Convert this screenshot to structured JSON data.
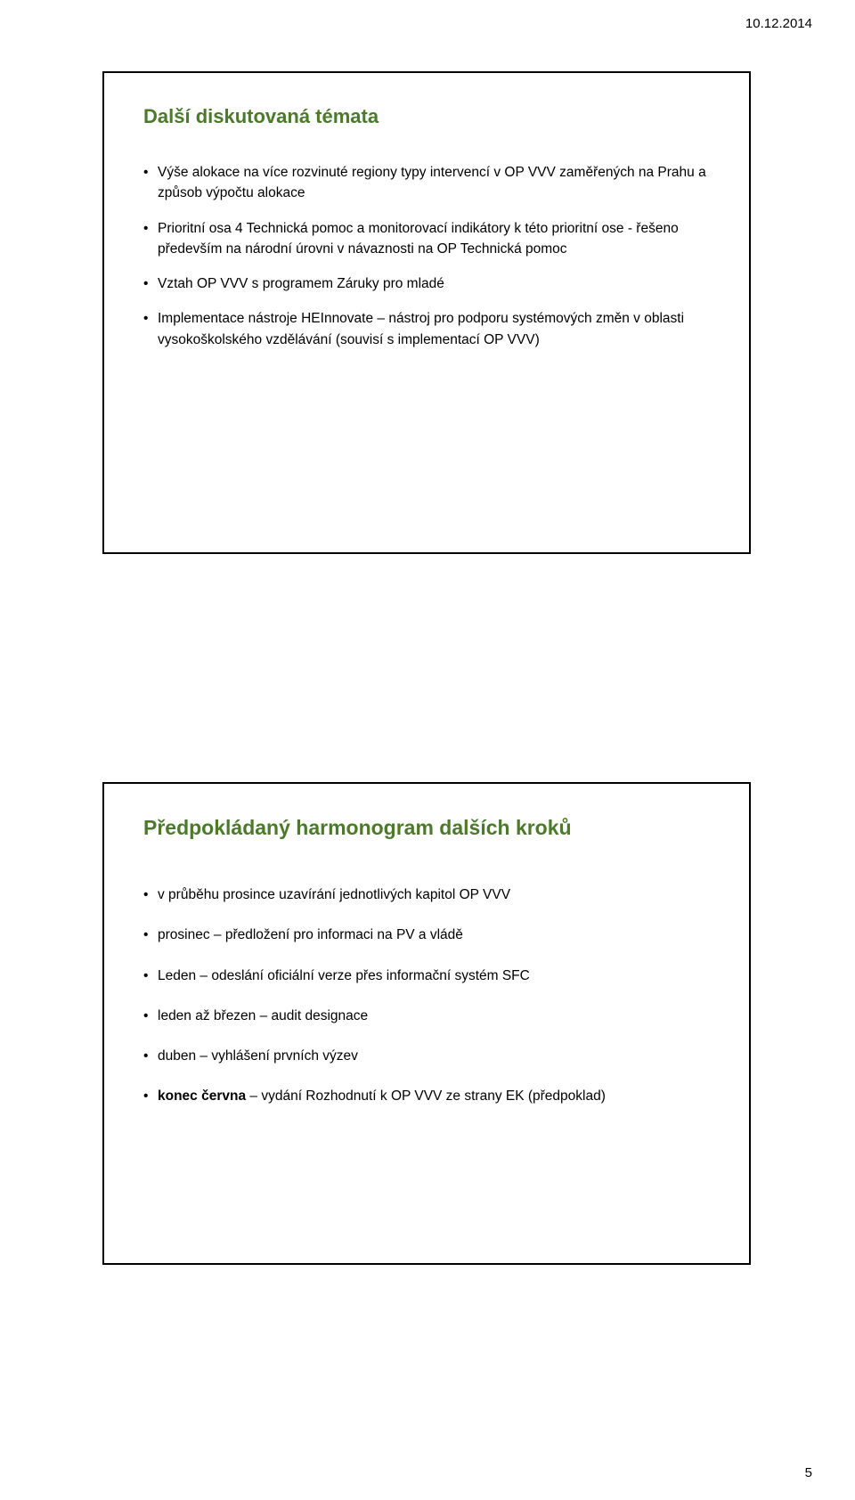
{
  "header": {
    "date": "10.12.2014"
  },
  "footer": {
    "page_number": "5"
  },
  "slides": [
    {
      "title": "Další diskutovaná témata",
      "title_color": "#4a7a2a",
      "bullets": [
        {
          "text": "Výše alokace na více rozvinuté regiony typy intervencí v OP VVV zaměřených na Prahu a způsob výpočtu alokace"
        },
        {
          "text": "Prioritní osa 4 Technická pomoc a monitorovací indikátory k této prioritní ose - řešeno především na národní úrovni v návaznosti na OP Technická pomoc"
        },
        {
          "text": "Vztah OP VVV s programem Záruky pro mladé"
        },
        {
          "text": "Implementace nástroje HEInnovate – nástroj pro podporu systémových změn v oblasti vysokoškolského vzdělávání (souvisí s implementací OP VVV)"
        }
      ]
    },
    {
      "title": "Předpokládaný harmonogram dalších kroků",
      "title_color": "#4a7a2a",
      "bullets": [
        {
          "text": "v průběhu prosince uzavírání jednotlivých kapitol OP VVV"
        },
        {
          "text": "prosinec – předložení pro informaci na PV a vládě"
        },
        {
          "text": "Leden   – odeslání oficiální verze přes informační systém SFC"
        },
        {
          "text": "leden až březen – audit designace"
        },
        {
          "text": "duben – vyhlášení prvních výzev"
        },
        {
          "prefix_bold": "konec června",
          "text": " – vydání Rozhodnutí k OP VVV ze strany EK (předpoklad)"
        }
      ]
    }
  ]
}
